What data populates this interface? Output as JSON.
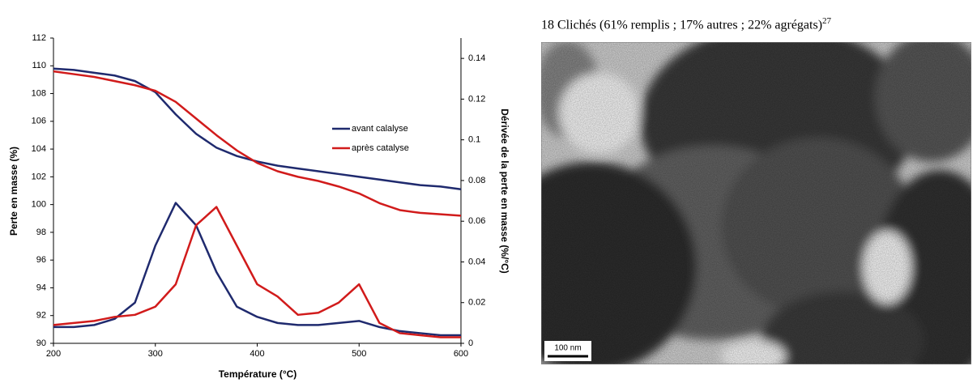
{
  "chart_data": {
    "type": "line",
    "x_label": "Température (°C)",
    "y_label": "Perte en masse (%)",
    "y2_label": "Dérivée de la perte en masse (%/°C)",
    "x": [
      200,
      220,
      240,
      260,
      280,
      300,
      320,
      340,
      360,
      380,
      400,
      420,
      440,
      460,
      480,
      500,
      520,
      540,
      560,
      580,
      600
    ],
    "series": [
      {
        "name": "avant calalyse",
        "color": "#1f2a6e",
        "values": [
          109.8,
          109.7,
          109.5,
          109.3,
          108.9,
          108.1,
          106.5,
          105.1,
          104.1,
          103.5,
          103.1,
          102.8,
          102.6,
          102.4,
          102.2,
          102.0,
          101.8,
          101.6,
          101.4,
          101.3,
          101.1
        ],
        "y2_values": [
          0.008,
          0.008,
          0.009,
          0.012,
          0.02,
          0.048,
          0.069,
          0.058,
          0.035,
          0.018,
          0.013,
          0.01,
          0.009,
          0.009,
          0.01,
          0.011,
          0.008,
          0.006,
          0.005,
          0.004,
          0.004
        ]
      },
      {
        "name": "après catalyse",
        "color": "#d11b1b",
        "values": [
          109.6,
          109.4,
          109.2,
          108.9,
          108.6,
          108.2,
          107.4,
          106.2,
          105.0,
          103.9,
          103.0,
          102.4,
          102.0,
          101.7,
          101.3,
          100.8,
          100.1,
          99.6,
          99.4,
          99.3,
          99.2
        ],
        "y2_values": [
          0.009,
          0.01,
          0.011,
          0.013,
          0.014,
          0.018,
          0.029,
          0.058,
          0.067,
          0.048,
          0.029,
          0.023,
          0.014,
          0.015,
          0.02,
          0.029,
          0.01,
          0.005,
          0.004,
          0.003,
          0.003
        ]
      }
    ],
    "xlim": [
      200,
      600
    ],
    "xticks": [
      200,
      300,
      400,
      500,
      600
    ],
    "ylim": [
      90,
      112
    ],
    "yticks": [
      90,
      92,
      94,
      96,
      98,
      100,
      102,
      104,
      106,
      108,
      110,
      112
    ],
    "y2lim": [
      0,
      0.15
    ],
    "y2ticks": [
      0,
      0.02,
      0.04,
      0.06,
      0.08,
      0.1,
      0.12,
      0.14
    ],
    "legend": "right",
    "grid": false
  },
  "micrograph": {
    "caption": "18 Clichés (61% remplis ; 17% autres ; 22% agrégats)",
    "reference": "27",
    "scale_bar": "100 nm"
  }
}
